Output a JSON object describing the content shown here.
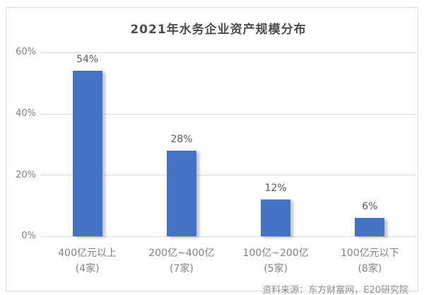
{
  "panel": {
    "background": "#ffffff",
    "border_color": "#dcdcdc"
  },
  "chart_data": {
    "type": "bar",
    "title": "2021年水务企业资产规模分布",
    "categories": [
      "400亿元以上",
      "200亿~400亿",
      "100亿~200亿",
      "100亿元以下"
    ],
    "category_counts": [
      "(4家)",
      "(7家)",
      "(5家)",
      "(8家)"
    ],
    "values": [
      54,
      28,
      12,
      6
    ],
    "value_labels": [
      "54%",
      "28%",
      "12%",
      "6%"
    ],
    "y_ticks": [
      "60%",
      "40%",
      "20%",
      "0%"
    ],
    "ylim": [
      0,
      60
    ],
    "grid": true,
    "legend": false,
    "bar_color": "#4472C4",
    "gridline_color": "#d9d9d9",
    "source": "资料来源：东方财富网，E20研究院"
  }
}
